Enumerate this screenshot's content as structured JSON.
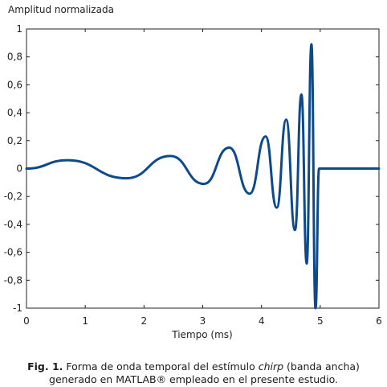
{
  "chart_data": {
    "type": "line",
    "ylabel": "Amplitud normalizada",
    "xlabel": "Tiempo (ms)",
    "xlim": [
      0,
      6
    ],
    "ylim": [
      -1,
      1
    ],
    "xticks": [
      "0",
      "1",
      "2",
      "3",
      "4",
      "5",
      "6"
    ],
    "yticks": [
      "1",
      "0,8",
      "0,6",
      "0,4",
      "0,2",
      "0",
      "-0,2",
      "-0,4",
      "-0,6",
      "-0,8",
      "-1"
    ],
    "grid": false,
    "line_color": "#0d4a8c",
    "series": [
      {
        "x": [
          0,
          0.7,
          1.7,
          2.45,
          3.02,
          3.45,
          3.8,
          4.07,
          4.26,
          4.42,
          4.57,
          4.68,
          4.77,
          4.85,
          4.92,
          4.98,
          6.0
        ],
        "values": [
          0,
          0.06,
          -0.07,
          0.09,
          -0.11,
          0.15,
          -0.18,
          0.23,
          -0.28,
          0.35,
          -0.44,
          0.53,
          -0.68,
          0.89,
          -1.0,
          0,
          0
        ]
      }
    ]
  },
  "caption": {
    "label": "Fig. 1.",
    "line1_a": "Forma de onda temporal del estímulo",
    "line1_em": "chirp",
    "line1_b": "(banda ancha)",
    "line2": "generado en MATLAB® empleado en el presente estudio."
  }
}
